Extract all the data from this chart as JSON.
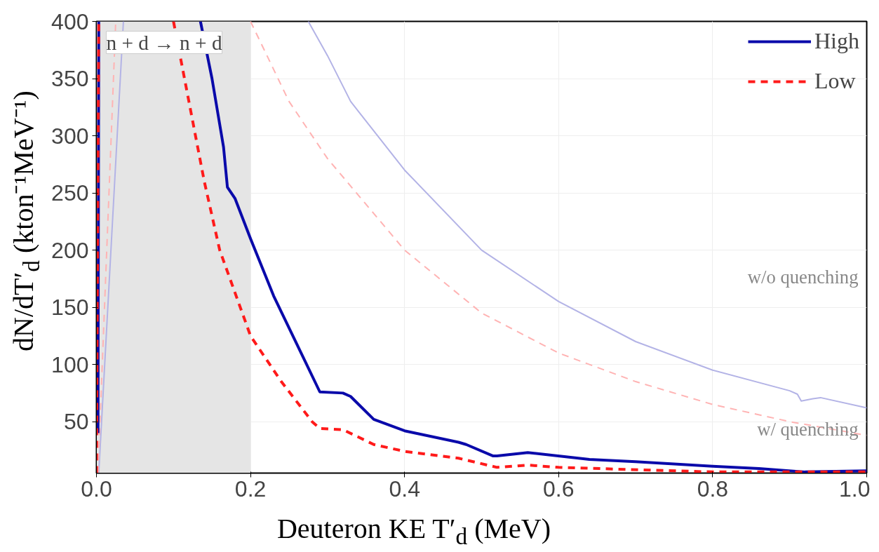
{
  "chart_data": {
    "type": "line",
    "xlabel": "Deuteron KE T′$_{d}$ (MeV)",
    "ylabel": "dN/dT′$_{d}$ (kton⁻¹MeV⁻¹)",
    "xlim": [
      0,
      1
    ],
    "ylim": [
      5,
      400
    ],
    "xticks": [
      {
        "value": 0,
        "label": "0.0"
      },
      {
        "value": 0.2,
        "label": "0.2"
      },
      {
        "value": 0.4,
        "label": "0.4"
      },
      {
        "value": 0.6,
        "label": "0.6"
      },
      {
        "value": 0.8,
        "label": "0.8"
      },
      {
        "value": 1,
        "label": "1.0"
      }
    ],
    "yticks": [
      50,
      100,
      150,
      200,
      250,
      300,
      350,
      400
    ],
    "grid": true,
    "legend": "top right",
    "bands": [
      {
        "axis": "x",
        "from": 0,
        "to": 0.2,
        "label": "n + d → n + d",
        "color": "#e5e5e5"
      }
    ],
    "annotations": [
      "w/o quenching",
      "w/ quenching"
    ],
    "series": [
      {
        "color": "#b3b3e6",
        "line_style": "solid",
        "x": [
          0.003,
          0.035,
          0.27,
          0.275,
          0.3,
          0.33,
          0.4,
          0.5,
          0.6,
          0.7,
          0.8,
          0.9,
          0.91,
          0.915,
          0.93,
          0.94,
          1.0
        ],
        "values": [
          5,
          400,
          null,
          400,
          370,
          330,
          270,
          200,
          155,
          120,
          95,
          77,
          74,
          68,
          70,
          71,
          62
        ]
      },
      {
        "color": "#ffb3b3",
        "line_style": "dashed",
        "x": [
          0.002,
          0.025,
          0.19,
          0.2,
          0.25,
          0.3,
          0.4,
          0.5,
          0.6,
          0.7,
          0.8,
          0.9,
          1.0
        ],
        "values": [
          5,
          400,
          null,
          400,
          330,
          280,
          200,
          145,
          110,
          85,
          65,
          50,
          38
        ]
      },
      {
        "name": "High",
        "color": "#0a0aaa",
        "line_style": "solid",
        "x": [
          0.002,
          0.003,
          0.1,
          0.135,
          0.15,
          0.165,
          0.17,
          0.18,
          0.2,
          0.23,
          0.29,
          0.32,
          0.33,
          0.36,
          0.4,
          0.47,
          0.48,
          0.515,
          0.52,
          0.56,
          0.64,
          0.7,
          0.8,
          0.86,
          0.92,
          1.0
        ],
        "values": [
          40,
          400,
          null,
          400,
          350,
          290,
          255,
          245,
          210,
          160,
          76,
          75,
          72,
          52,
          42,
          32,
          30,
          20,
          20,
          23,
          17,
          15,
          11,
          9,
          6,
          7
        ]
      },
      {
        "name": "Low",
        "color": "#ff1a1a",
        "line_style": "dashed",
        "x": [
          0.0,
          0.003,
          0.05,
          0.1,
          0.12,
          0.14,
          0.16,
          0.2,
          0.24,
          0.28,
          0.29,
          0.32,
          0.36,
          0.4,
          0.47,
          0.52,
          0.56,
          0.6,
          0.8,
          1.0
        ],
        "values": [
          5,
          400,
          null,
          400,
          330,
          260,
          200,
          125,
          85,
          50,
          44,
          43,
          30,
          24,
          18,
          10,
          12,
          10,
          6,
          6
        ]
      }
    ]
  }
}
